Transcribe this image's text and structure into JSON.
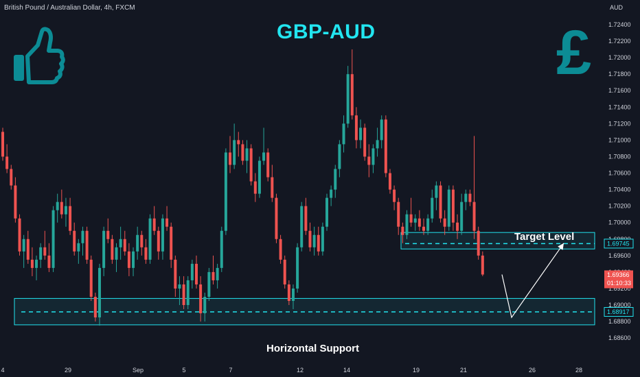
{
  "header": {
    "symbol_line": "British Pound / Australian Dollar, 4h, FXCM",
    "title": "GBP-AUD"
  },
  "annotations": {
    "target_label": "Target Level",
    "support_label": "Horizontal Support"
  },
  "icons": {
    "left": "thumbs-up-icon",
    "right": "pound-sign-icon",
    "accent_color": "#0c8c95"
  },
  "chart_data": {
    "type": "candlestick",
    "currency_label": "AUD",
    "y_ticks": [
      "1.72400",
      "1.72200",
      "1.72000",
      "1.71800",
      "1.71600",
      "1.71400",
      "1.71200",
      "1.71000",
      "1.70800",
      "1.70600",
      "1.70400",
      "1.70200",
      "1.70000",
      "1.69800",
      "1.69600",
      "1.69400",
      "1.69200",
      "1.69000",
      "1.68800",
      "1.68600"
    ],
    "ylim": [
      1.685,
      1.725
    ],
    "x_ticks": [
      "4",
      "29",
      "Sep",
      "5",
      "7",
      "12",
      "14",
      "19",
      "21",
      "26",
      "28"
    ],
    "up_color": "#26a69a",
    "down_color": "#ef5350",
    "zone_color": "#22e5f0",
    "candles": [
      [
        1.711,
        1.7115,
        1.7075,
        1.708
      ],
      [
        1.708,
        1.7095,
        1.706,
        1.7065
      ],
      [
        1.7065,
        1.707,
        1.704,
        1.7045
      ],
      [
        1.7045,
        1.7055,
        1.7,
        1.7005
      ],
      [
        1.7005,
        1.701,
        1.696,
        1.6965
      ],
      [
        1.6965,
        1.6985,
        1.6945,
        1.698
      ],
      [
        1.698,
        1.699,
        1.695,
        1.6955
      ],
      [
        1.6955,
        1.697,
        1.6935,
        1.6945
      ],
      [
        1.6945,
        1.696,
        1.693,
        1.6955
      ],
      [
        1.6955,
        1.6975,
        1.6945,
        1.697
      ],
      [
        1.697,
        1.699,
        1.6955,
        1.696
      ],
      [
        1.696,
        1.6975,
        1.694,
        1.6945
      ],
      [
        1.6945,
        1.702,
        1.694,
        1.7015
      ],
      [
        1.7015,
        1.7035,
        1.7,
        1.7025
      ],
      [
        1.7025,
        1.704,
        1.7005,
        1.701
      ],
      [
        1.701,
        1.703,
        1.6995,
        1.702
      ],
      [
        1.702,
        1.703,
        1.6985,
        1.699
      ],
      [
        1.699,
        1.7,
        1.696,
        1.6965
      ],
      [
        1.6965,
        1.698,
        1.695,
        1.6975
      ],
      [
        1.6975,
        1.6995,
        1.696,
        1.699
      ],
      [
        1.699,
        1.6995,
        1.695,
        1.6955
      ],
      [
        1.6955,
        1.696,
        1.6905,
        1.691
      ],
      [
        1.691,
        1.6915,
        1.688,
        1.6885
      ],
      [
        1.6885,
        1.695,
        1.6875,
        1.6945
      ],
      [
        1.6945,
        1.6995,
        1.6935,
        1.699
      ],
      [
        1.699,
        1.7005,
        1.6975,
        1.698
      ],
      [
        1.698,
        1.6985,
        1.695,
        1.6955
      ],
      [
        1.6955,
        1.6975,
        1.694,
        1.697
      ],
      [
        1.697,
        1.6995,
        1.6955,
        1.698
      ],
      [
        1.698,
        1.699,
        1.696,
        1.6965
      ],
      [
        1.6965,
        1.6975,
        1.6935,
        1.6945
      ],
      [
        1.6945,
        1.697,
        1.6935,
        1.6965
      ],
      [
        1.6965,
        1.6995,
        1.6955,
        1.6985
      ],
      [
        1.6985,
        1.699,
        1.696,
        1.697
      ],
      [
        1.697,
        1.698,
        1.695,
        1.6955
      ],
      [
        1.6955,
        1.701,
        1.695,
        1.7005
      ],
      [
        1.7005,
        1.702,
        1.6985,
        1.699
      ],
      [
        1.699,
        1.6995,
        1.6955,
        1.6965
      ],
      [
        1.6965,
        1.701,
        1.6955,
        1.7005
      ],
      [
        1.7005,
        1.702,
        1.699,
        1.6995
      ],
      [
        1.6995,
        1.7,
        1.6945,
        1.6955
      ],
      [
        1.6955,
        1.696,
        1.691,
        1.692
      ],
      [
        1.692,
        1.6935,
        1.69,
        1.6925
      ],
      [
        1.6925,
        1.6935,
        1.6895,
        1.69
      ],
      [
        1.69,
        1.6935,
        1.6895,
        1.693
      ],
      [
        1.693,
        1.6955,
        1.692,
        1.695
      ],
      [
        1.695,
        1.696,
        1.692,
        1.6925
      ],
      [
        1.6925,
        1.6935,
        1.688,
        1.689
      ],
      [
        1.689,
        1.6915,
        1.688,
        1.691
      ],
      [
        1.691,
        1.6945,
        1.6905,
        1.694
      ],
      [
        1.694,
        1.696,
        1.6925,
        1.693
      ],
      [
        1.693,
        1.695,
        1.692,
        1.6945
      ],
      [
        1.6945,
        1.6995,
        1.694,
        1.699
      ],
      [
        1.699,
        1.709,
        1.6985,
        1.7085
      ],
      [
        1.7085,
        1.7105,
        1.706,
        1.707
      ],
      [
        1.707,
        1.712,
        1.7065,
        1.71
      ],
      [
        1.71,
        1.711,
        1.708,
        1.7095
      ],
      [
        1.7095,
        1.71,
        1.707,
        1.7075
      ],
      [
        1.7075,
        1.71,
        1.706,
        1.709
      ],
      [
        1.709,
        1.7095,
        1.7045,
        1.705
      ],
      [
        1.705,
        1.706,
        1.7025,
        1.7035
      ],
      [
        1.7035,
        1.708,
        1.703,
        1.7075
      ],
      [
        1.7075,
        1.7115,
        1.707,
        1.7085
      ],
      [
        1.7085,
        1.709,
        1.705,
        1.7055
      ],
      [
        1.7055,
        1.707,
        1.7025,
        1.703
      ],
      [
        1.703,
        1.7035,
        1.6975,
        1.698
      ],
      [
        1.698,
        1.6985,
        1.695,
        1.6955
      ],
      [
        1.6955,
        1.696,
        1.692,
        1.6925
      ],
      [
        1.6925,
        1.693,
        1.69,
        1.6905
      ],
      [
        1.6905,
        1.6925,
        1.6895,
        1.692
      ],
      [
        1.692,
        1.6975,
        1.6915,
        1.697
      ],
      [
        1.697,
        1.7025,
        1.6965,
        1.702
      ],
      [
        1.702,
        1.703,
        1.6985,
        1.699
      ],
      [
        1.699,
        1.7,
        1.6965,
        1.697
      ],
      [
        1.697,
        1.6995,
        1.696,
        1.6985
      ],
      [
        1.6985,
        1.6995,
        1.696,
        1.6965
      ],
      [
        1.6965,
        1.7,
        1.696,
        1.6995
      ],
      [
        1.6995,
        1.7035,
        1.699,
        1.703
      ],
      [
        1.703,
        1.7045,
        1.702,
        1.704
      ],
      [
        1.704,
        1.707,
        1.703,
        1.7065
      ],
      [
        1.7065,
        1.71,
        1.7055,
        1.7095
      ],
      [
        1.7095,
        1.713,
        1.7085,
        1.712
      ],
      [
        1.712,
        1.719,
        1.7115,
        1.718
      ],
      [
        1.718,
        1.721,
        1.7125,
        1.713
      ],
      [
        1.713,
        1.714,
        1.709,
        1.71
      ],
      [
        1.71,
        1.7125,
        1.709,
        1.7115
      ],
      [
        1.7115,
        1.712,
        1.7075,
        1.708
      ],
      [
        1.708,
        1.7095,
        1.7055,
        1.707
      ],
      [
        1.707,
        1.7095,
        1.706,
        1.709
      ],
      [
        1.709,
        1.7115,
        1.708,
        1.71
      ],
      [
        1.71,
        1.713,
        1.709,
        1.7125
      ],
      [
        1.7125,
        1.713,
        1.7055,
        1.706
      ],
      [
        1.706,
        1.7065,
        1.7035,
        1.704
      ],
      [
        1.704,
        1.7045,
        1.7015,
        1.7025
      ],
      [
        1.7025,
        1.703,
        1.6985,
        1.6995
      ],
      [
        1.6995,
        1.7,
        1.6975,
        1.6985
      ],
      [
        1.6985,
        1.7015,
        1.698,
        1.701
      ],
      [
        1.701,
        1.703,
        1.6995,
        1.7
      ],
      [
        1.7,
        1.701,
        1.699,
        1.7005
      ],
      [
        1.7005,
        1.7015,
        1.699,
        1.6995
      ],
      [
        1.6995,
        1.7005,
        1.6985,
        1.699
      ],
      [
        1.699,
        1.701,
        1.6985,
        1.7005
      ],
      [
        1.7005,
        1.704,
        1.7,
        1.703
      ],
      [
        1.703,
        1.705,
        1.7015,
        1.7045
      ],
      [
        1.7045,
        1.705,
        1.7,
        1.7005
      ],
      [
        1.7005,
        1.7015,
        1.6985,
        1.6995
      ],
      [
        1.6995,
        1.7045,
        1.699,
        1.704
      ],
      [
        1.704,
        1.7045,
        1.699,
        1.7
      ],
      [
        1.7,
        1.701,
        1.698,
        1.699
      ],
      [
        1.699,
        1.7035,
        1.6985,
        1.7025
      ],
      [
        1.7025,
        1.704,
        1.7015,
        1.7035
      ],
      [
        1.7035,
        1.704,
        1.702,
        1.7025
      ],
      [
        1.7025,
        1.7105,
        1.698,
        1.699
      ],
      [
        1.699,
        1.6995,
        1.6955,
        1.696
      ],
      [
        1.696,
        1.6965,
        1.6935,
        1.6937
      ]
    ],
    "current_price": "1.69366",
    "countdown": "01:10:33",
    "target_level": {
      "price": 1.69745,
      "label": "1.69745",
      "zone": [
        1.6968,
        1.6988
      ]
    },
    "support_level": {
      "price": 1.68917,
      "label": "1.68917",
      "zone": [
        1.6876,
        1.6908
      ]
    },
    "projection_path": [
      [
        1.6937
      ],
      [
        1.6885
      ],
      [
        1.6975
      ]
    ]
  }
}
